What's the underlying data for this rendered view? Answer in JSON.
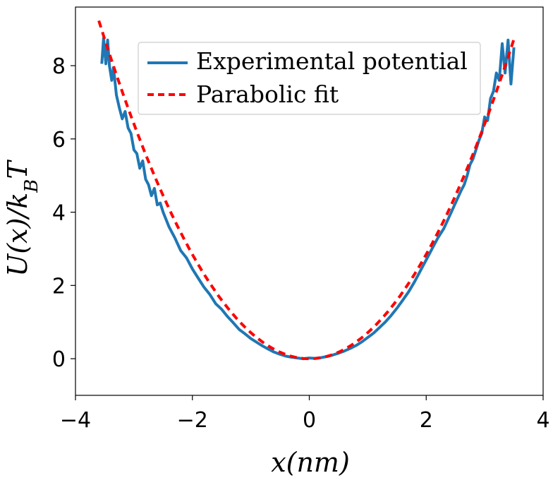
{
  "chart_data": {
    "type": "line",
    "title": "",
    "xlabel": "x(nm)",
    "ylabel": "U(x)/k_BT",
    "xlim": [
      -4,
      4
    ],
    "ylim": [
      -1,
      9.6
    ],
    "x_ticks": [
      -4,
      -2,
      0,
      2,
      4
    ],
    "x_tick_labels": [
      "−4",
      "−2",
      "0",
      "2",
      "4"
    ],
    "y_ticks": [
      0,
      2,
      4,
      6,
      8
    ],
    "y_tick_labels": [
      "0",
      "2",
      "4",
      "6",
      "8"
    ],
    "grid": false,
    "legend_position": "top-center",
    "series": [
      {
        "name": "Experimental potential",
        "style": "solid",
        "color": "#1f77b4",
        "x": [
          -3.55,
          -3.52,
          -3.48,
          -3.45,
          -3.42,
          -3.38,
          -3.35,
          -3.3,
          -3.25,
          -3.2,
          -3.15,
          -3.1,
          -3.05,
          -3.0,
          -2.95,
          -2.9,
          -2.85,
          -2.8,
          -2.75,
          -2.7,
          -2.65,
          -2.6,
          -2.55,
          -2.5,
          -2.4,
          -2.3,
          -2.2,
          -2.1,
          -2.0,
          -1.9,
          -1.8,
          -1.7,
          -1.6,
          -1.5,
          -1.4,
          -1.3,
          -1.2,
          -1.1,
          -1.0,
          -0.9,
          -0.8,
          -0.7,
          -0.6,
          -0.5,
          -0.4,
          -0.3,
          -0.2,
          -0.1,
          0.0,
          0.1,
          0.2,
          0.3,
          0.4,
          0.5,
          0.6,
          0.7,
          0.8,
          0.9,
          1.0,
          1.1,
          1.2,
          1.3,
          1.4,
          1.5,
          1.6,
          1.7,
          1.8,
          1.9,
          2.0,
          2.1,
          2.2,
          2.3,
          2.4,
          2.5,
          2.6,
          2.65,
          2.7,
          2.75,
          2.8,
          2.85,
          2.9,
          2.95,
          3.0,
          3.05,
          3.1,
          3.15,
          3.2,
          3.25,
          3.3,
          3.35,
          3.4,
          3.45,
          3.5
        ],
        "y": [
          8.05,
          8.75,
          8.05,
          8.7,
          8.0,
          7.6,
          7.95,
          7.2,
          6.85,
          6.55,
          6.75,
          6.3,
          6.15,
          5.7,
          5.6,
          5.2,
          5.4,
          4.9,
          4.75,
          4.45,
          4.65,
          4.2,
          4.25,
          4.0,
          3.6,
          3.3,
          2.95,
          2.75,
          2.45,
          2.2,
          1.95,
          1.75,
          1.5,
          1.35,
          1.15,
          0.98,
          0.8,
          0.68,
          0.55,
          0.45,
          0.35,
          0.26,
          0.18,
          0.12,
          0.07,
          0.04,
          0.02,
          0.0,
          0.02,
          0.01,
          0.03,
          0.06,
          0.1,
          0.15,
          0.21,
          0.28,
          0.36,
          0.46,
          0.58,
          0.7,
          0.85,
          1.0,
          1.18,
          1.38,
          1.6,
          1.83,
          2.1,
          2.4,
          2.7,
          3.0,
          3.3,
          3.55,
          3.9,
          4.25,
          4.6,
          4.75,
          5.0,
          5.3,
          5.45,
          5.7,
          5.95,
          6.15,
          6.6,
          6.5,
          7.1,
          7.3,
          7.8,
          7.6,
          8.6,
          7.8,
          8.7,
          7.5,
          8.5
        ]
      },
      {
        "name": "Parabolic fit",
        "style": "dashed",
        "color": "#ff0000",
        "equation": "U = 0.712 x^2",
        "x_range": [
          -3.6,
          3.5
        ]
      }
    ]
  },
  "colors": {
    "experimental": "#1f77b4",
    "fit": "#ff0000",
    "axes": "#000000",
    "legend_border": "#cccccc"
  }
}
